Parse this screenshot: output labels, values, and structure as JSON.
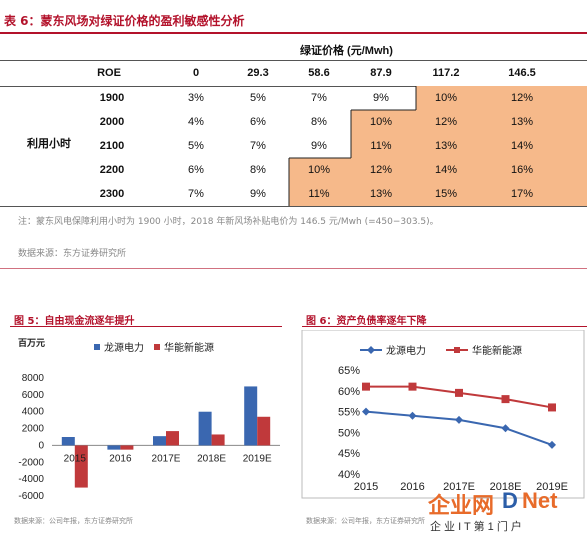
{
  "table6": {
    "title": "表 6：蒙东风场对绿证价格的盈利敏感性分析",
    "price_header": "绿证价格 (元/Mwh)",
    "roe_label": "ROE",
    "hours_label": "利用小时",
    "prices": [
      "0",
      "29.3",
      "58.6",
      "87.9",
      "117.2",
      "146.5"
    ],
    "rows": [
      {
        "hours": "1900",
        "values": [
          "3%",
          "5%",
          "7%",
          "9%",
          "10%",
          "12%"
        ]
      },
      {
        "hours": "2000",
        "values": [
          "4%",
          "6%",
          "8%",
          "10%",
          "12%",
          "13%"
        ]
      },
      {
        "hours": "2100",
        "values": [
          "5%",
          "7%",
          "9%",
          "11%",
          "13%",
          "14%"
        ]
      },
      {
        "hours": "2200",
        "values": [
          "6%",
          "8%",
          "10%",
          "12%",
          "14%",
          "16%"
        ]
      },
      {
        "hours": "2300",
        "values": [
          "7%",
          "9%",
          "11%",
          "13%",
          "15%",
          "17%"
        ]
      }
    ],
    "highlight_color": "#f6b98a",
    "note": "注：蒙东风电保障利用小时为 1900 小时，2018 年新风场补贴电价为 146.5 元/Mwh (=450−303.5)。",
    "source": "数据来源：东方证券研究所"
  },
  "chart5": {
    "title": "图 5：自由现金流逐年提升",
    "source": "数据来源：公司年报，东方证券研究所"
  },
  "chart6": {
    "title": "图 6：资产负债率逐年下降",
    "source": "数据来源：公司年报，东方证券研究所"
  },
  "watermark": {
    "text1": "企业网",
    "text2": "D",
    "text3": "Net",
    "subtitle": "企 业 I T 第 1 门 户"
  },
  "chart_data": [
    {
      "type": "bar",
      "ylabel": "百万元",
      "categories": [
        "2015",
        "2016",
        "2017E",
        "2018E",
        "2019E"
      ],
      "series": [
        {
          "name": "龙源电力",
          "color": "#3a67b0",
          "values": [
            1000,
            -500,
            1100,
            4000,
            7000
          ]
        },
        {
          "name": "华能新能源",
          "color": "#c0393b",
          "values": [
            -5000,
            -500,
            1700,
            1300,
            3400
          ]
        }
      ],
      "ylim": [
        -6000,
        8000
      ],
      "yticks": [
        "8000",
        "6000",
        "4000",
        "2000",
        "0",
        "-2000",
        "-4000",
        "-6000"
      ]
    },
    {
      "type": "line",
      "categories": [
        "2015",
        "2016",
        "2017E",
        "2018E",
        "2019E"
      ],
      "series": [
        {
          "name": "龙源电力",
          "color": "#3a67b0",
          "values": [
            55,
            54,
            53,
            51,
            47
          ]
        },
        {
          "name": "华能新能源",
          "color": "#c0393b",
          "values": [
            61,
            61,
            59.5,
            58,
            56
          ]
        }
      ],
      "ylim": [
        40,
        65
      ],
      "yticks": [
        "65%",
        "60%",
        "55%",
        "50%",
        "45%",
        "40%"
      ]
    }
  ]
}
